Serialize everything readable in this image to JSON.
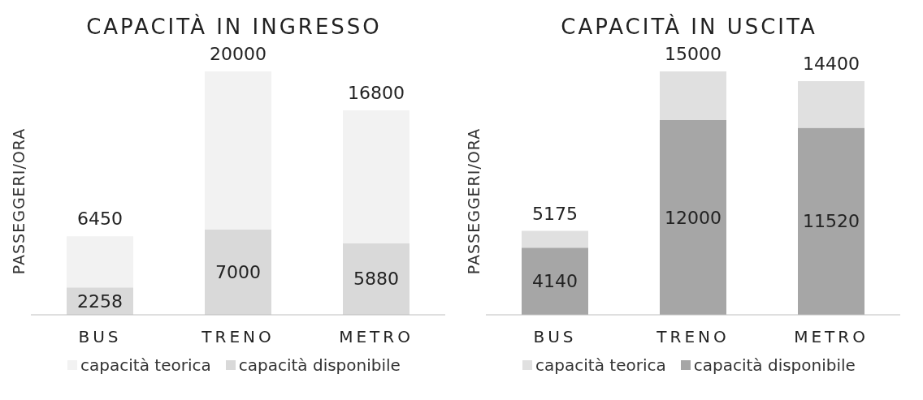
{
  "chart_data": [
    {
      "type": "bar",
      "title": "CAPACITÀ IN INGRESSO",
      "ylabel": "PASSEGGERI/ORA",
      "categories": [
        "BUS",
        "TRENO",
        "METRO"
      ],
      "stacked": true,
      "tick_labels": "x",
      "legend": "bottom",
      "totals": [
        "6450",
        "20000",
        "16800"
      ],
      "series": [
        {
          "name": "capacità disponibile",
          "color": "#d9d9d9",
          "values": [
            2258,
            7000,
            5880
          ],
          "value_labels": [
            "2258",
            "7000",
            "5880"
          ]
        },
        {
          "name": "capacità teorica",
          "color": "#f2f2f2",
          "values": [
            4192,
            13000,
            10920
          ]
        }
      ]
    },
    {
      "type": "bar",
      "title": "CAPACITÀ IN USCITA",
      "ylabel": "PASSEGGERI/ORA",
      "categories": [
        "BUS",
        "TRENO",
        "METRO"
      ],
      "stacked": true,
      "tick_labels": "x",
      "legend": "bottom",
      "totals": [
        "5175",
        "15000",
        "14400"
      ],
      "series": [
        {
          "name": "capacità disponibile",
          "color": "#a6a6a6",
          "values": [
            4140,
            12000,
            11520
          ],
          "value_labels": [
            "4140",
            "12000",
            "11520"
          ]
        },
        {
          "name": "capacità teorica",
          "color": "#e0e0e0",
          "values": [
            1035,
            3000,
            2880
          ]
        }
      ]
    }
  ]
}
